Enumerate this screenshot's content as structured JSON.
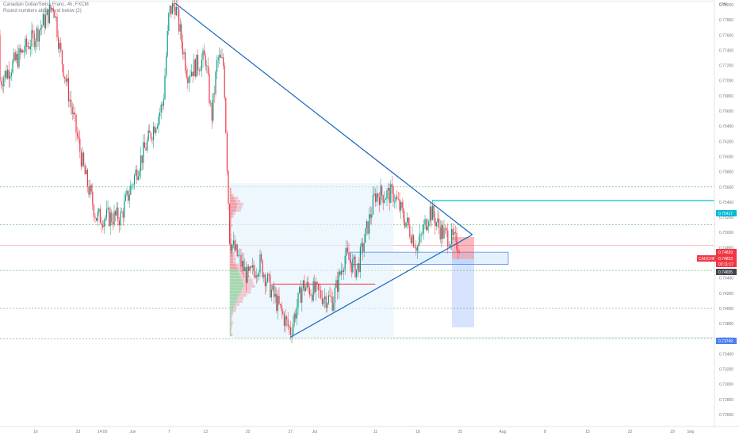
{
  "legend": {
    "title": "Canadian Dollar/Swiss Franc, 4h, FXCM",
    "indicator": "Round numbers above and below (2)"
  },
  "chart_data": {
    "type": "candlestick",
    "symbol": "CADCHF",
    "currency": "CHF",
    "ylim": [
      0.722,
      0.781
    ],
    "y_ticks": [
      "0.78000",
      "0.77800",
      "0.77600",
      "0.77400",
      "0.77200",
      "0.77000",
      "0.76800",
      "0.76600",
      "0.76400",
      "0.76200",
      "0.76000",
      "0.75800",
      "0.75600",
      "0.75400",
      "0.75200",
      "0.75000",
      "0.74800",
      "0.74600",
      "0.74400",
      "0.74200",
      "0.74000",
      "0.73800",
      "0.73600",
      "0.73400",
      "0.73200",
      "0.73000",
      "0.72800",
      "0.72600"
    ],
    "x_ticks": [
      "16",
      "23",
      "14:00",
      "Jun",
      "7",
      "13",
      "20",
      "27",
      "Jul",
      "11",
      "18",
      "25",
      "Aug",
      "8",
      "15",
      "22",
      "29",
      "Sep"
    ],
    "price_tags": {
      "resistance": "0.75417",
      "upper": "0.74839",
      "symbol_label": "CADCHF",
      "last": "0.74833",
      "countdown": "03:11:17",
      "support": "0.74655",
      "target": "0.73749"
    },
    "levels": {
      "resistance": 0.7542,
      "support": 0.7466,
      "current": 0.7483,
      "target": 0.7375,
      "round_numbers": [
        0.756,
        0.751,
        0.745,
        0.74,
        0.736
      ]
    },
    "triangle": {
      "upper_start": {
        "date": "2022-06-08",
        "price": 0.7802
      },
      "lower_start": {
        "date": "2022-06-27",
        "price": 0.7362
      },
      "apex": {
        "date": "2022-07-27",
        "price": 0.7497
      }
    },
    "key_points": [
      {
        "date": "2022-05-16",
        "price": 0.776
      },
      {
        "date": "2022-05-19",
        "price": 0.78
      },
      {
        "date": "2022-05-20",
        "price": 0.774
      },
      {
        "date": "2022-05-24",
        "price": 0.758
      },
      {
        "date": "2022-05-26",
        "price": 0.752
      },
      {
        "date": "2022-05-30",
        "price": 0.752
      },
      {
        "date": "2022-06-02",
        "price": 0.759
      },
      {
        "date": "2022-06-06",
        "price": 0.767
      },
      {
        "date": "2022-06-07",
        "price": 0.779
      },
      {
        "date": "2022-06-08",
        "price": 0.78
      },
      {
        "date": "2022-06-10",
        "price": 0.771
      },
      {
        "date": "2022-06-13",
        "price": 0.773
      },
      {
        "date": "2022-06-14",
        "price": 0.765
      },
      {
        "date": "2022-06-15",
        "price": 0.773
      },
      {
        "date": "2022-06-16",
        "price": 0.772
      },
      {
        "date": "2022-06-17",
        "price": 0.749
      },
      {
        "date": "2022-06-20",
        "price": 0.744
      },
      {
        "date": "2022-06-22",
        "price": 0.746
      },
      {
        "date": "2022-06-24",
        "price": 0.742
      },
      {
        "date": "2022-06-27",
        "price": 0.737
      },
      {
        "date": "2022-06-29",
        "price": 0.743
      },
      {
        "date": "2022-07-04",
        "price": 0.741
      },
      {
        "date": "2022-07-06",
        "price": 0.747
      },
      {
        "date": "2022-07-08",
        "price": 0.745
      },
      {
        "date": "2022-07-11",
        "price": 0.755
      },
      {
        "date": "2022-07-14",
        "price": 0.755
      },
      {
        "date": "2022-07-18",
        "price": 0.748
      },
      {
        "date": "2022-07-20",
        "price": 0.753
      },
      {
        "date": "2022-07-22",
        "price": 0.75
      },
      {
        "date": "2022-07-25",
        "price": 0.7483
      }
    ]
  }
}
